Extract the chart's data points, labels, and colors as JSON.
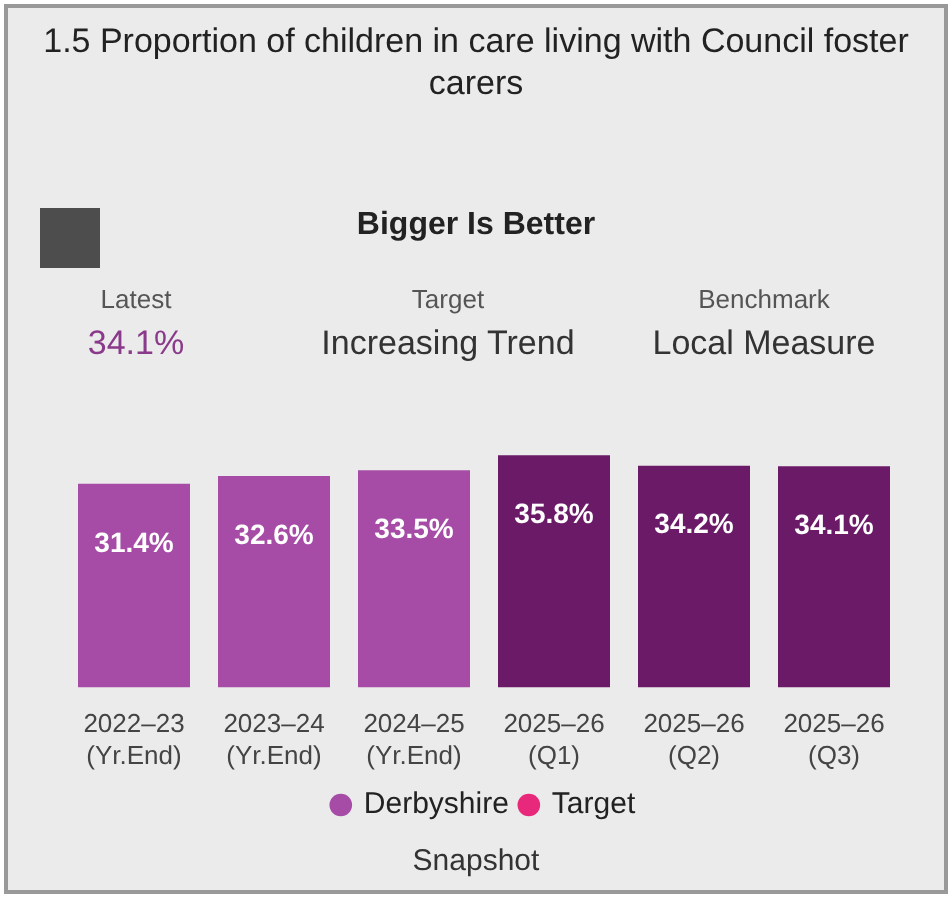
{
  "chart_data": {
    "type": "bar",
    "title": "1.5 Proportion of children in care living with Council foster carers",
    "categories": [
      "2022–23 (Yr.End)",
      "2023–24 (Yr.End)",
      "2024–25 (Yr.End)",
      "2025–26 (Q1)",
      "2025–26 (Q2)",
      "2025–26 (Q3)"
    ],
    "series": [
      {
        "name": "Derbyshire",
        "color": "#a64ca6",
        "colors": [
          "#a64ca6",
          "#a64ca6",
          "#a64ca6",
          "#6b1a68",
          "#6b1a68",
          "#6b1a68"
        ],
        "values": [
          31.4,
          32.6,
          33.5,
          35.8,
          34.2,
          34.1
        ],
        "value_labels": [
          "31.4%",
          "32.6%",
          "33.5%",
          "35.8%",
          "34.2%",
          "34.1%"
        ]
      },
      {
        "name": "Target",
        "type": "line",
        "color": "#e8287a",
        "values": [
          null,
          null,
          null,
          null,
          null,
          null
        ]
      }
    ],
    "legend": "bottom",
    "annotations": [
      "Bigger Is Better",
      "Latest",
      "34.1%",
      "Target",
      "Increasing Trend",
      "Benchmark",
      "Local Measure",
      "Snapshot"
    ]
  }
}
